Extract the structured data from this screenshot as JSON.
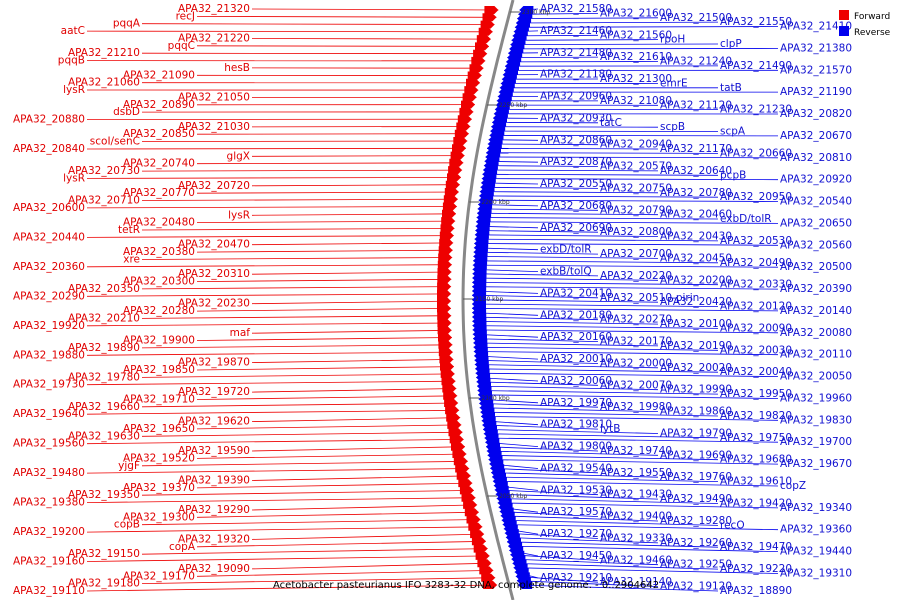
{
  "caption": "Acetobacter pasteurianus IFO 3283-32 DNA, complete genome. - 0..2904642",
  "legend": [
    {
      "label": "Forward",
      "color": "#ee0000"
    },
    {
      "label": "Reverse",
      "color": "#0000ee"
    }
  ],
  "colors": {
    "forward": "#ee0000",
    "reverse": "#0000ee",
    "backbone": "#888888"
  },
  "ticks": [
    {
      "label": "2300 kbp"
    },
    {
      "label": "2250 kbp"
    },
    {
      "label": "2200 kbp"
    },
    {
      "label": "2150 kbp"
    },
    {
      "label": "2100 kbp"
    },
    {
      "label": "2050 kbp"
    }
  ],
  "forward_labels": [
    "APA32_21320",
    "recJ",
    "pqqA",
    "aatC",
    "APA32_21220",
    "pqqC",
    "APA32_21210",
    "pqqB",
    "hesB",
    "APA32_21090",
    "APA32_21060",
    "lysR",
    "APA32_21050",
    "APA32_20890",
    "dsbD",
    "APA32_20880",
    "APA32_21030",
    "APA32_20850",
    "scoI/senC",
    "APA32_20840",
    "glgX",
    "APA32_20740",
    "APA32_20730",
    "lysR",
    "APA32_20720",
    "APA32_20770",
    "APA32_20710",
    "APA32_20600",
    "lysR",
    "APA32_20480",
    "tetR",
    "APA32_20440",
    "APA32_20470",
    "APA32_20380",
    "xre",
    "APA32_20360",
    "APA32_20310",
    "APA32_20300",
    "APA32_20350",
    "APA32_20290",
    "APA32_20230",
    "APA32_20280",
    "APA32_20210",
    "APA32_19920",
    "maf",
    "APA32_19900",
    "APA32_19890",
    "APA32_19880",
    "APA32_19870",
    "APA32_19850",
    "APA32_19780",
    "APA32_19730",
    "APA32_19720",
    "APA32_19710",
    "APA32_19660",
    "APA32_19640",
    "APA32_19620",
    "APA32_19650",
    "APA32_19630",
    "APA32_19560",
    "APA32_19590",
    "APA32_19520",
    "yjgF",
    "APA32_19480",
    "APA32_19390",
    "APA32_19370",
    "APA32_19350",
    "APA32_19380",
    "APA32_19290",
    "APA32_19300",
    "copB",
    "APA32_19200",
    "APA32_19320",
    "copA",
    "APA32_19150",
    "APA32_19160",
    "APA32_19090",
    "APA32_19170",
    "APA32_19180",
    "APA32_19110"
  ],
  "reverse_labels": [
    "APA32_21580",
    "APA32_21600",
    "APA32_21500",
    "APA32_21550",
    "APA32_21410",
    "APA32_21460",
    "APA32_21560",
    "rpoH",
    "clpP",
    "APA32_21380",
    "APA32_21480",
    "APA32_21610",
    "APA32_21240",
    "APA32_21490",
    "APA32_21570",
    "APA32_21180",
    "APA32_21300",
    "emrE",
    "tatB",
    "APA32_21190",
    "APA32_20960",
    "APA32_21080",
    "APA32_21120",
    "APA32_21230",
    "APA32_20820",
    "APA32_20930",
    "tatC",
    "scpB",
    "scpA",
    "APA32_20670",
    "APA32_20860",
    "APA32_20940",
    "APA32_21170",
    "APA32_20660",
    "APA32_20810",
    "APA32_20870",
    "APA32_20570",
    "APA32_20640",
    "pcpB",
    "APA32_20920",
    "APA32_20550",
    "APA32_20750",
    "APA32_20780",
    "APA32_20950",
    "APA32_20540",
    "APA32_20680",
    "APA32_20790",
    "APA32_20460",
    "exbD/tolR",
    "APA32_20650",
    "APA32_20690",
    "APA32_20800",
    "APA32_20430",
    "APA32_20530",
    "APA32_20560",
    "exbD/tolR",
    "APA32_20700",
    "APA32_20450",
    "APA32_20490",
    "APA32_20500",
    "exbB/tolQ",
    "APA32_20220",
    "APA32_20200",
    "APA32_20330",
    "APA32_20390",
    "APA32_20410",
    "APA32_20510-pirin",
    "APA32_20420",
    "APA32_20120",
    "APA32_20140",
    "APA32_20180",
    "APA32_20270",
    "APA32_20100",
    "APA32_20090",
    "APA32_20080",
    "APA32_20160",
    "APA32_20170",
    "APA32_20190",
    "APA32_20030",
    "APA32_20110",
    "APA32_20010",
    "APA32_20000",
    "APA32_20020",
    "APA32_20040",
    "APA32_20050",
    "APA32_20060",
    "APA32_20070",
    "APA32_19990",
    "APA32_19950",
    "APA32_19960",
    "APA32_19970",
    "APA32_19980",
    "APA32_19860",
    "APA32_19820",
    "APA32_19830",
    "APA32_19810",
    "lytB",
    "APA32_19790",
    "APA32_19750",
    "APA32_19700",
    "APA32_19800",
    "APA32_19740",
    "APA32_19690",
    "APA32_19680",
    "APA32_19670",
    "APA32_19540",
    "APA32_19550",
    "APA32_19760",
    "APA32_19610",
    "copZ",
    "APA32_19530",
    "APA32_19430",
    "APA32_19490",
    "APA32_19420",
    "APA32_19340",
    "APA32_19570",
    "APA32_19400",
    "APA32_19280",
    "recO",
    "APA32_19360",
    "APA32_19270",
    "APA32_19330",
    "APA32_19260",
    "APA32_19470",
    "APA32_19440",
    "APA32_19450",
    "APA32_19460",
    "APA32_19250",
    "APA32_19220",
    "APA32_19310",
    "APA32_19210",
    "APA32_19140",
    "APA32_19120",
    "APA32_18890"
  ]
}
